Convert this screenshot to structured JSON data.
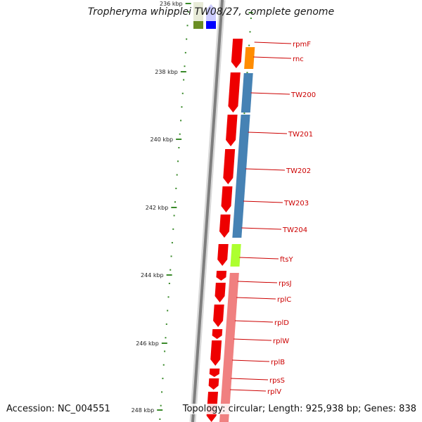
{
  "title": "Tropheryma whipplei TW08/27, complete genome",
  "accession": "Accession: NC_004551",
  "topology": "Topology: circular; Length: 925,938 bp; Genes: 838",
  "colors": {
    "backbone": "#7f7f7f",
    "tick": "#3a8a2a",
    "label": "#cc0000",
    "gene_red": "#ee0000",
    "orange": "#ff8c00",
    "blue": "#4682b4",
    "lime": "#adff2f",
    "pink": "#f08080",
    "olive": "#6b8e23",
    "pure_blue": "#0000ff"
  },
  "scale": {
    "ticks": [
      {
        "label": "236 kbp"
      },
      {
        "label": "238 kbp"
      },
      {
        "label": "240 kbp"
      },
      {
        "label": "242 kbp"
      },
      {
        "label": "244 kbp"
      },
      {
        "label": "246 kbp"
      },
      {
        "label": "248 kbp"
      }
    ]
  },
  "gene_labels": [
    {
      "name": "rpmF"
    },
    {
      "name": "rnc"
    },
    {
      "name": "TW200"
    },
    {
      "name": "TW201"
    },
    {
      "name": "TW202"
    },
    {
      "name": "TW203"
    },
    {
      "name": "TW204"
    },
    {
      "name": "ftsY"
    },
    {
      "name": "rpsJ"
    },
    {
      "name": "rplC"
    },
    {
      "name": "rplD"
    },
    {
      "name": "rplW"
    },
    {
      "name": "rplB"
    },
    {
      "name": "rpsS"
    },
    {
      "name": "rplV"
    }
  ]
}
